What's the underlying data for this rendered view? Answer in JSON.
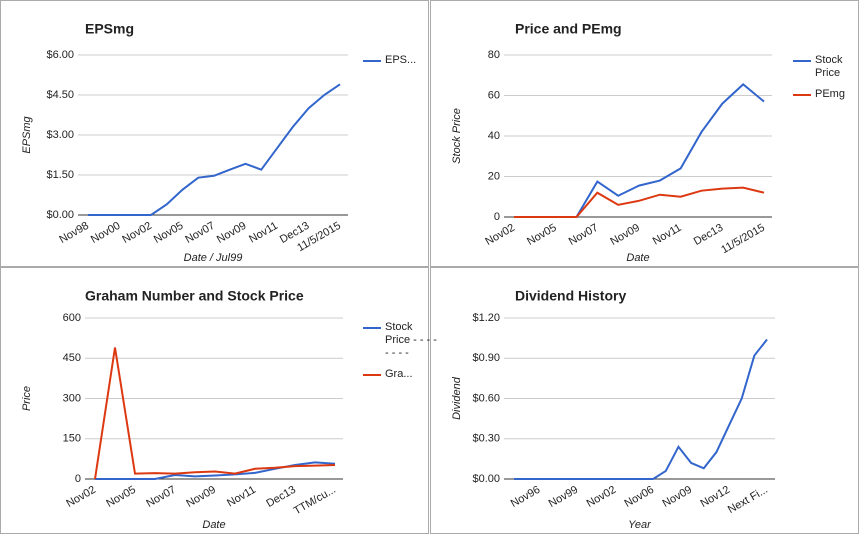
{
  "chart_data": [
    {
      "type": "line",
      "title": "EPSmg",
      "y_label": "EPSmg",
      "x_label": "Date / Jul99",
      "categories": [
        "Nov98",
        null,
        "Nov00",
        null,
        "Nov02",
        null,
        "Nov05",
        null,
        "Nov07",
        null,
        "Nov09",
        null,
        "Nov11",
        null,
        "Dec13",
        null,
        "11/5/2015"
      ],
      "series": [
        {
          "name": "EPS...",
          "color": "#3366cc",
          "values": [
            0,
            0,
            0,
            0,
            0,
            0.4,
            0.95,
            1.4,
            1.47,
            1.7,
            1.92,
            1.7,
            2.5,
            3.3,
            4.0,
            4.5,
            4.9
          ]
        }
      ],
      "ylim": [
        0,
        6
      ],
      "yticks": [
        {
          "value": 0,
          "label": "$0.00"
        },
        {
          "value": 1.5,
          "label": "$1.50"
        },
        {
          "value": 3,
          "label": "$3.00"
        },
        {
          "value": 4.5,
          "label": "$4.50"
        },
        {
          "value": 6,
          "label": "$6.00"
        }
      ],
      "grid": true,
      "legend": "right"
    },
    {
      "type": "line",
      "title": "Price and PEmg",
      "y_label": "Stock Price",
      "x_label": "Date",
      "categories": [
        "Nov02",
        null,
        "Nov05",
        null,
        "Nov07",
        null,
        "Nov09",
        null,
        "Nov11",
        null,
        "Dec13",
        null,
        "11/5/2015"
      ],
      "series": [
        {
          "name": "Stock Price",
          "color": "#3366cc",
          "values": [
            0,
            0,
            0,
            0,
            17.5,
            10.5,
            15.5,
            18,
            24,
            42,
            56,
            65.5,
            57
          ]
        },
        {
          "name": "PEmg",
          "color": "#dc3912",
          "values": [
            0,
            0,
            0,
            0,
            12,
            6,
            8,
            11,
            10,
            13,
            14,
            14.5,
            12
          ]
        }
      ],
      "ylim": [
        0,
        80
      ],
      "yticks": [
        0,
        20,
        40,
        60,
        80
      ],
      "grid": true,
      "legend": "right"
    },
    {
      "type": "line",
      "title": "Graham Number and Stock Price",
      "y_label": "Price",
      "x_label": "Date",
      "categories": [
        "Nov02",
        null,
        "Nov05",
        null,
        "Nov07",
        null,
        "Nov09",
        null,
        "Nov11",
        null,
        "Dec13",
        null,
        "TTM/cu..."
      ],
      "series": [
        {
          "name": "Stock Price - - - - - - - -",
          "color": "#3366cc",
          "values": [
            0,
            0,
            0,
            0,
            15,
            10,
            13,
            17,
            23,
            38,
            52,
            62,
            57
          ]
        },
        {
          "name": "Gra...",
          "color": "#dc3912",
          "values": [
            0,
            490,
            20,
            22,
            20,
            25,
            28,
            20,
            38,
            42,
            48,
            50,
            52
          ]
        }
      ],
      "ylim": [
        0,
        600
      ],
      "yticks": [
        0,
        150,
        300,
        450,
        600
      ],
      "grid": true,
      "legend": "right"
    },
    {
      "type": "line",
      "title": "Dividend History",
      "y_label": "Dividend",
      "x_label": "Year",
      "categories": [
        null,
        null,
        "Nov96",
        null,
        null,
        "Nov99",
        null,
        null,
        "Nov02",
        null,
        null,
        "Nov06",
        null,
        null,
        "Nov09",
        null,
        null,
        "Nov12",
        null,
        null,
        "Next Fi..."
      ],
      "series": [
        {
          "color": "#3366cc",
          "values": [
            0,
            0,
            0,
            0,
            0,
            0,
            0,
            0,
            0,
            0,
            0,
            0,
            0.06,
            0.24,
            0.12,
            0.08,
            0.2,
            0.4,
            0.6,
            0.92,
            1.04
          ]
        }
      ],
      "ylim": [
        0,
        1.2
      ],
      "yticks": [
        {
          "value": 0,
          "label": "$0.00"
        },
        {
          "value": 0.3,
          "label": "$0.30"
        },
        {
          "value": 0.6,
          "label": "$0.60"
        },
        {
          "value": 0.9,
          "label": "$0.90"
        },
        {
          "value": 1.2,
          "label": "$1.20"
        }
      ],
      "grid": true,
      "legend": "none"
    }
  ]
}
